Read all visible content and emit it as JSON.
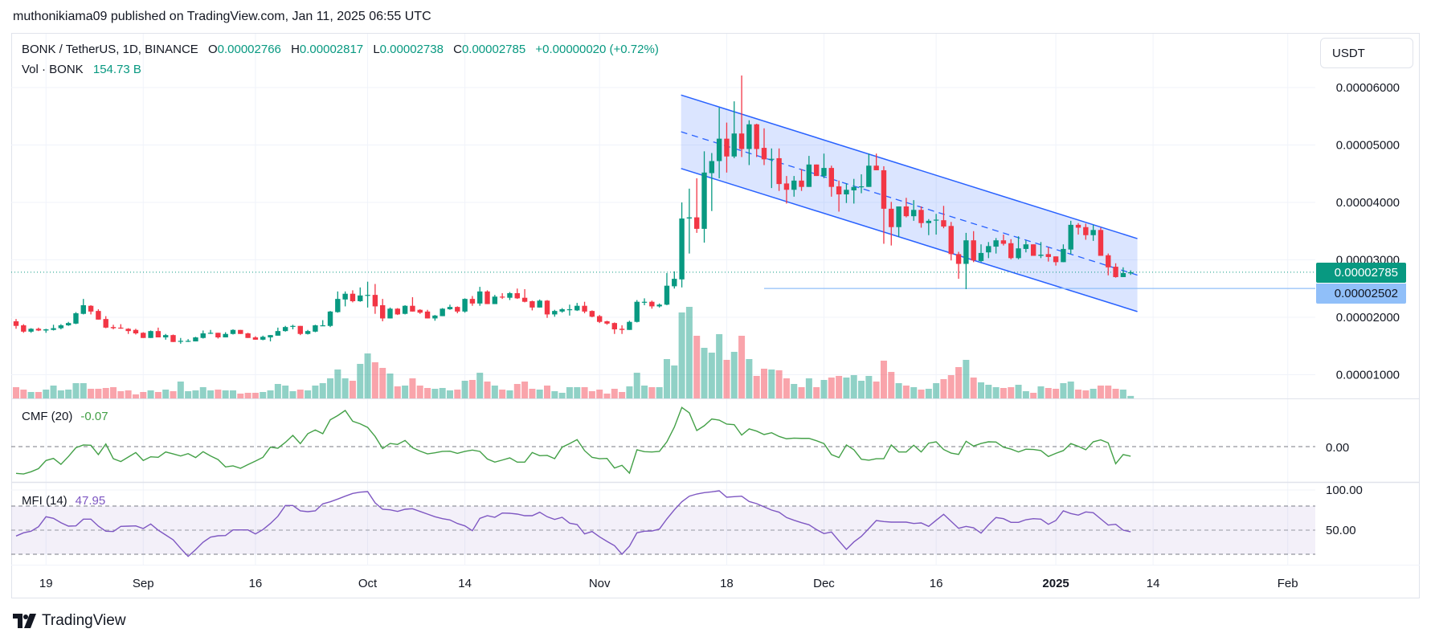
{
  "header": {
    "publisher_line": "muthonikiama09 published on TradingView.com, Jan 11, 2025 06:55 UTC"
  },
  "legend": {
    "symbol": "BONK / TetherUS, 1D, BINANCE",
    "o_label": "O",
    "o": "0.00002766",
    "h_label": "H",
    "h": "0.00002817",
    "l_label": "L",
    "l": "0.00002738",
    "c_label": "C",
    "c": "0.00002785",
    "change": "+0.00000020 (+0.72%)",
    "vol_label": "Vol · BONK",
    "vol": "154.73 B"
  },
  "currency_button": "USDT",
  "price_axis": {
    "ticks": [
      {
        "label": "0.00006000",
        "value": 6
      },
      {
        "label": "0.00005000",
        "value": 5
      },
      {
        "label": "0.00004000",
        "value": 4
      },
      {
        "label": "0.00003000",
        "value": 3
      },
      {
        "label": "0.00002000",
        "value": 2
      },
      {
        "label": "0.00001000",
        "value": 1
      }
    ],
    "last_price_badge": "0.00002785",
    "line_badge": "0.00002502"
  },
  "cmf": {
    "label": "CMF (20)",
    "value": "-0.07",
    "axis_label": "0.00"
  },
  "mfi": {
    "label": "MFI (14)",
    "value": "47.95",
    "axis_labels": [
      "100.00",
      "50.00"
    ]
  },
  "time_axis": {
    "ticks": [
      {
        "label": "19",
        "day": 4
      },
      {
        "label": "Sep",
        "day": 17
      },
      {
        "label": "16",
        "day": 32
      },
      {
        "label": "Oct",
        "day": 47
      },
      {
        "label": "14",
        "day": 60
      },
      {
        "label": "Nov",
        "day": 78
      },
      {
        "label": "18",
        "day": 95
      },
      {
        "label": "Dec",
        "day": 108
      },
      {
        "label": "16",
        "day": 123
      },
      {
        "label": "2025",
        "day": 139
      },
      {
        "label": "14",
        "day": 152
      },
      {
        "label": "Feb",
        "day": 170
      }
    ]
  },
  "footer": {
    "logo_text": "TradingView"
  },
  "colors": {
    "up": "#089981",
    "down": "#f23645",
    "vol_up": "rgba(8,153,129,0.45)",
    "vol_down": "rgba(242,54,69,0.45)",
    "cmf": "#43a047",
    "mfi": "#7e57c2",
    "channel": "#2962ff",
    "hline": "#90bff9"
  },
  "chart_data": {
    "type": "candlestick",
    "title": "BONK / TetherUS, 1D, BINANCE",
    "price_unit": "1e-5 USDT",
    "volume_unit": "B",
    "start_date": "2024-08-15",
    "ylim": [
      0.6,
      6.5
    ],
    "candles_ohlc": [
      [
        1.93,
        1.97,
        1.8,
        1.85
      ],
      [
        1.86,
        1.88,
        1.73,
        1.75
      ],
      [
        1.75,
        1.81,
        1.73,
        1.8
      ],
      [
        1.8,
        1.82,
        1.76,
        1.77
      ],
      [
        1.77,
        1.8,
        1.73,
        1.79
      ],
      [
        1.78,
        1.87,
        1.77,
        1.81
      ],
      [
        1.81,
        1.88,
        1.79,
        1.86
      ],
      [
        1.86,
        1.92,
        1.85,
        1.9
      ],
      [
        1.89,
        2.09,
        1.88,
        2.07
      ],
      [
        2.06,
        2.32,
        2.05,
        2.21
      ],
      [
        2.2,
        2.21,
        2.05,
        2.1
      ],
      [
        2.11,
        2.14,
        1.96,
        1.96
      ],
      [
        1.97,
        2.02,
        1.81,
        1.82
      ],
      [
        1.83,
        1.87,
        1.79,
        1.81
      ],
      [
        1.82,
        1.88,
        1.8,
        1.81
      ],
      [
        1.8,
        1.81,
        1.71,
        1.76
      ],
      [
        1.78,
        1.8,
        1.7,
        1.72
      ],
      [
        1.73,
        1.74,
        1.64,
        1.64
      ],
      [
        1.64,
        1.77,
        1.64,
        1.76
      ],
      [
        1.76,
        1.82,
        1.65,
        1.65
      ],
      [
        1.65,
        1.71,
        1.61,
        1.69
      ],
      [
        1.69,
        1.7,
        1.57,
        1.57
      ],
      [
        1.59,
        1.64,
        1.54,
        1.59
      ],
      [
        1.58,
        1.62,
        1.57,
        1.59
      ],
      [
        1.58,
        1.66,
        1.58,
        1.65
      ],
      [
        1.64,
        1.77,
        1.63,
        1.72
      ],
      [
        1.72,
        1.78,
        1.71,
        1.73
      ],
      [
        1.73,
        1.73,
        1.63,
        1.65
      ],
      [
        1.65,
        1.74,
        1.65,
        1.71
      ],
      [
        1.71,
        1.79,
        1.7,
        1.78
      ],
      [
        1.78,
        1.78,
        1.71,
        1.71
      ],
      [
        1.72,
        1.73,
        1.64,
        1.64
      ],
      [
        1.65,
        1.67,
        1.61,
        1.61
      ],
      [
        1.61,
        1.68,
        1.6,
        1.66
      ],
      [
        1.65,
        1.69,
        1.58,
        1.69
      ],
      [
        1.68,
        1.82,
        1.68,
        1.76
      ],
      [
        1.76,
        1.85,
        1.75,
        1.83
      ],
      [
        1.84,
        1.87,
        1.79,
        1.85
      ],
      [
        1.85,
        1.85,
        1.69,
        1.71
      ],
      [
        1.71,
        1.78,
        1.7,
        1.76
      ],
      [
        1.75,
        1.87,
        1.74,
        1.86
      ],
      [
        1.86,
        1.95,
        1.85,
        1.86
      ],
      [
        1.85,
        2.11,
        1.83,
        2.1
      ],
      [
        2.09,
        2.45,
        2.08,
        2.32
      ],
      [
        2.31,
        2.45,
        2.19,
        2.41
      ],
      [
        2.41,
        2.47,
        2.26,
        2.28
      ],
      [
        2.28,
        2.52,
        2.27,
        2.38
      ],
      [
        2.39,
        2.62,
        2.17,
        2.39
      ],
      [
        2.39,
        2.58,
        2.06,
        2.19
      ],
      [
        2.21,
        2.32,
        1.93,
        1.98
      ],
      [
        1.98,
        2.17,
        1.98,
        2.15
      ],
      [
        2.15,
        2.16,
        2.04,
        2.05
      ],
      [
        2.06,
        2.21,
        2.05,
        2.2
      ],
      [
        2.2,
        2.35,
        2.1,
        2.1
      ],
      [
        2.13,
        2.14,
        2.06,
        2.08
      ],
      [
        2.1,
        2.13,
        1.98,
        1.98
      ],
      [
        1.98,
        2.04,
        1.94,
        2.03
      ],
      [
        2.02,
        2.16,
        2.02,
        2.15
      ],
      [
        2.14,
        2.22,
        2.13,
        2.18
      ],
      [
        2.18,
        2.19,
        2.07,
        2.1
      ],
      [
        2.1,
        2.33,
        2.08,
        2.32
      ],
      [
        2.32,
        2.37,
        2.2,
        2.24
      ],
      [
        2.24,
        2.53,
        2.2,
        2.45
      ],
      [
        2.45,
        2.47,
        2.23,
        2.23
      ],
      [
        2.23,
        2.39,
        2.23,
        2.36
      ],
      [
        2.36,
        2.42,
        2.32,
        2.35
      ],
      [
        2.34,
        2.44,
        2.3,
        2.42
      ],
      [
        2.42,
        2.5,
        2.32,
        2.33
      ],
      [
        2.34,
        2.49,
        2.26,
        2.27
      ],
      [
        2.28,
        2.29,
        2.12,
        2.17
      ],
      [
        2.17,
        2.31,
        2.17,
        2.29
      ],
      [
        2.29,
        2.3,
        1.99,
        2.05
      ],
      [
        2.05,
        2.13,
        2.01,
        2.11
      ],
      [
        2.1,
        2.16,
        2.08,
        2.14
      ],
      [
        2.14,
        2.22,
        2.03,
        2.14
      ],
      [
        2.12,
        2.25,
        2.11,
        2.2
      ],
      [
        2.2,
        2.27,
        2.07,
        2.1
      ],
      [
        2.11,
        2.12,
        2.0,
        2.01
      ],
      [
        2.02,
        2.04,
        1.9,
        1.92
      ],
      [
        1.93,
        1.94,
        1.87,
        1.89
      ],
      [
        1.9,
        1.91,
        1.71,
        1.79
      ],
      [
        1.8,
        1.86,
        1.71,
        1.78
      ],
      [
        1.78,
        1.94,
        1.78,
        1.92
      ],
      [
        1.92,
        2.3,
        1.91,
        2.27
      ],
      [
        2.27,
        2.33,
        2.21,
        2.27
      ],
      [
        2.27,
        2.29,
        2.15,
        2.19
      ],
      [
        2.19,
        2.24,
        2.17,
        2.22
      ],
      [
        2.22,
        2.77,
        2.21,
        2.55
      ],
      [
        2.54,
        2.8,
        2.5,
        2.67
      ],
      [
        2.66,
        4.0,
        2.52,
        3.72
      ],
      [
        3.72,
        4.24,
        3.11,
        3.74
      ],
      [
        3.74,
        4.42,
        3.47,
        3.54
      ],
      [
        3.54,
        4.89,
        3.3,
        4.52
      ],
      [
        4.51,
        4.86,
        3.85,
        4.72
      ],
      [
        4.72,
        5.65,
        4.42,
        5.11
      ],
      [
        5.11,
        5.39,
        4.52,
        4.8
      ],
      [
        4.8,
        5.76,
        4.77,
        5.2
      ],
      [
        5.2,
        6.21,
        4.79,
        4.93
      ],
      [
        4.93,
        5.43,
        4.65,
        5.36
      ],
      [
        5.36,
        5.37,
        4.79,
        4.93
      ],
      [
        4.95,
        5.29,
        4.65,
        4.75
      ],
      [
        4.76,
        4.94,
        4.25,
        4.76
      ],
      [
        4.77,
        4.94,
        4.2,
        4.32
      ],
      [
        4.33,
        4.46,
        3.98,
        4.22
      ],
      [
        4.22,
        4.46,
        4.1,
        4.38
      ],
      [
        4.38,
        4.58,
        4.2,
        4.27
      ],
      [
        4.27,
        4.81,
        4.27,
        4.66
      ],
      [
        4.66,
        4.66,
        4.46,
        4.46
      ],
      [
        4.46,
        4.85,
        4.42,
        4.6
      ],
      [
        4.6,
        4.64,
        4.1,
        4.27
      ],
      [
        4.28,
        4.38,
        3.84,
        4.14
      ],
      [
        4.14,
        4.33,
        3.99,
        4.22
      ],
      [
        4.21,
        4.41,
        3.98,
        4.27
      ],
      [
        4.27,
        4.49,
        4.16,
        4.28
      ],
      [
        4.27,
        4.85,
        4.27,
        4.64
      ],
      [
        4.64,
        4.85,
        4.56,
        4.56
      ],
      [
        4.56,
        4.63,
        3.28,
        3.89
      ],
      [
        3.89,
        4.01,
        3.25,
        3.57
      ],
      [
        3.57,
        3.93,
        3.4,
        3.93
      ],
      [
        3.93,
        4.08,
        3.74,
        3.76
      ],
      [
        3.76,
        4.04,
        3.68,
        3.87
      ],
      [
        3.87,
        3.93,
        3.56,
        3.64
      ],
      [
        3.64,
        3.71,
        3.43,
        3.68
      ],
      [
        3.69,
        3.8,
        3.44,
        3.7
      ],
      [
        3.69,
        3.94,
        3.55,
        3.58
      ],
      [
        3.59,
        3.66,
        2.99,
        3.1
      ],
      [
        3.1,
        3.14,
        2.67,
        2.93
      ],
      [
        2.93,
        3.47,
        2.49,
        3.34
      ],
      [
        3.34,
        3.5,
        2.96,
        2.99
      ],
      [
        2.98,
        3.27,
        2.96,
        3.12
      ],
      [
        3.13,
        3.31,
        3.03,
        3.24
      ],
      [
        3.23,
        3.38,
        3.11,
        3.34
      ],
      [
        3.34,
        3.44,
        3.25,
        3.28
      ],
      [
        3.29,
        3.36,
        3.01,
        3.03
      ],
      [
        3.03,
        3.41,
        3.01,
        3.2
      ],
      [
        3.19,
        3.34,
        3.13,
        3.27
      ],
      [
        3.27,
        3.27,
        3.07,
        3.07
      ],
      [
        3.07,
        3.31,
        3.03,
        3.09
      ],
      [
        3.1,
        3.22,
        2.97,
        3.05
      ],
      [
        3.06,
        3.06,
        2.9,
        2.96
      ],
      [
        2.96,
        3.27,
        2.96,
        3.19
      ],
      [
        3.18,
        3.68,
        3.1,
        3.61
      ],
      [
        3.61,
        3.64,
        3.44,
        3.56
      ],
      [
        3.57,
        3.63,
        3.35,
        3.43
      ],
      [
        3.43,
        3.61,
        3.33,
        3.52
      ],
      [
        3.52,
        3.56,
        3.07,
        3.07
      ],
      [
        3.08,
        3.11,
        2.73,
        2.87
      ],
      [
        2.88,
        2.94,
        2.69,
        2.7
      ],
      [
        2.7,
        2.87,
        2.7,
        2.77
      ],
      [
        2.766,
        2.817,
        2.738,
        2.785
      ]
    ],
    "volume": [
      700,
      550,
      400,
      400,
      550,
      800,
      500,
      550,
      950,
      950,
      600,
      600,
      650,
      700,
      450,
      500,
      250,
      400,
      500,
      400,
      550,
      450,
      1050,
      450,
      500,
      700,
      500,
      550,
      500,
      500,
      300,
      350,
      350,
      400,
      500,
      900,
      800,
      450,
      550,
      500,
      800,
      950,
      1250,
      1800,
      1250,
      1100,
      2150,
      2800,
      2250,
      1900,
      1550,
      750,
      800,
      1250,
      800,
      650,
      600,
      650,
      500,
      550,
      1100,
      1150,
      1600,
      1050,
      800,
      550,
      500,
      900,
      1050,
      600,
      550,
      800,
      450,
      350,
      700,
      700,
      700,
      450,
      550,
      300,
      600,
      400,
      750,
      1600,
      800,
      700,
      700,
      2450,
      2050,
      5350,
      5700,
      3900,
      3150,
      2850,
      4000,
      2400,
      2900,
      3900,
      2450,
      1400,
      1850,
      1800,
      1750,
      1250,
      900,
      700,
      1250,
      700,
      1150,
      1300,
      1400,
      1300,
      1450,
      1100,
      1400,
      1050,
      2350,
      1650,
      950,
      800,
      700,
      550,
      600,
      950,
      1200,
      1450,
      1950,
      2400,
      1300,
      1000,
      850,
      700,
      650,
      700,
      850,
      450,
      350,
      750,
      650,
      600,
      950,
      1050,
      550,
      500,
      600,
      800,
      800,
      600,
      550,
      154.73
    ],
    "cmf_20": [
      -0.195,
      -0.199,
      -0.183,
      -0.16,
      -0.101,
      -0.086,
      -0.129,
      -0.072,
      -0.008,
      0.012,
      0.01,
      -0.058,
      0.019,
      -0.088,
      -0.109,
      -0.076,
      -0.043,
      -0.101,
      -0.074,
      -0.078,
      -0.039,
      -0.053,
      -0.068,
      -0.051,
      -0.08,
      -0.037,
      -0.068,
      -0.094,
      -0.148,
      -0.14,
      -0.158,
      -0.131,
      -0.105,
      -0.078,
      -0.004,
      -0.012,
      0.031,
      0.082,
      0.022,
      0.094,
      0.121,
      0.094,
      0.195,
      0.226,
      0.263,
      0.185,
      0.166,
      0.14,
      0.074,
      -0.014,
      0.023,
      0.016,
      0.045,
      -0.008,
      -0.033,
      -0.053,
      -0.045,
      -0.035,
      -0.033,
      -0.049,
      -0.035,
      -0.025,
      -0.035,
      -0.09,
      -0.113,
      -0.098,
      -0.082,
      -0.113,
      -0.113,
      -0.043,
      -0.066,
      -0.064,
      -0.088,
      -0.004,
      0.022,
      0.051,
      -0.029,
      -0.078,
      -0.088,
      -0.086,
      -0.156,
      -0.136,
      -0.193,
      -0.023,
      -0.037,
      -0.039,
      -0.035,
      0.035,
      0.142,
      0.285,
      0.246,
      0.117,
      0.152,
      0.201,
      0.193,
      0.164,
      0.16,
      0.084,
      0.129,
      0.113,
      0.088,
      0.101,
      0.074,
      0.057,
      0.062,
      0.06,
      0.06,
      0.043,
      0.022,
      -0.058,
      -0.08,
      0.012,
      -0.023,
      -0.092,
      -0.099,
      -0.088,
      -0.088,
      0.012,
      -0.039,
      -0.039,
      0.01,
      -0.039,
      0.025,
      0.035,
      -0.021,
      -0.047,
      -0.057,
      0.039,
      0.004,
      0.023,
      0.035,
      0.033,
      -0.004,
      -0.018,
      -0.039,
      -0.019,
      -0.021,
      -0.029,
      -0.072,
      -0.049,
      -0.029,
      0.022,
      0.002,
      -0.023,
      0.035,
      0.049,
      0.027,
      -0.125,
      -0.058,
      -0.07
    ],
    "mfi_14": [
      42.7,
      46.7,
      48.7,
      54.3,
      66.7,
      64.7,
      59.3,
      55,
      55.3,
      63.7,
      63.7,
      55,
      48.7,
      48.3,
      54.7,
      55,
      55.3,
      52,
      57.7,
      50,
      44,
      38,
      27.3,
      17.3,
      25.7,
      35,
      41.3,
      43,
      43.3,
      50.3,
      50.3,
      50.3,
      45.3,
      50.7,
      58.3,
      67.3,
      80.7,
      80.7,
      74,
      73,
      74,
      82.7,
      85.3,
      88.7,
      92.3,
      95.7,
      97.3,
      98,
      84,
      76,
      75.3,
      73.3,
      76,
      76.7,
      73.3,
      70,
      66.7,
      64.3,
      62.7,
      58.3,
      55.3,
      49.3,
      64.7,
      68,
      66,
      71.3,
      71,
      70,
      68,
      68,
      72.3,
      66.7,
      63.3,
      66,
      58.7,
      57,
      45.3,
      48.3,
      41.7,
      36,
      30.7,
      20,
      30,
      46.7,
      48.7,
      49,
      51.3,
      64,
      75.3,
      85.3,
      92.3,
      95,
      96.7,
      97.7,
      99,
      91,
      91.7,
      92.3,
      85.7,
      83,
      79,
      75,
      72.3,
      65.7,
      62.3,
      59.3,
      56.7,
      50.7,
      45.7,
      47.7,
      36.7,
      26,
      35.3,
      42.3,
      52,
      62,
      60.7,
      60,
      60,
      60,
      58.3,
      59,
      54.7,
      62.3,
      69.7,
      61,
      52.3,
      54.7,
      53,
      46.3,
      56.7,
      65.7,
      64.3,
      59.7,
      59.7,
      63,
      64.3,
      63.7,
      57.3,
      62,
      74,
      70.7,
      68.7,
      72.7,
      71.7,
      64,
      56.3,
      57.3,
      50,
      47.95
    ],
    "mfi_bands": [
      20,
      50,
      80
    ],
    "channel": {
      "start_day": 88.9,
      "end_day": 149.9,
      "upper": [
        5.87,
        3.37
      ],
      "lower": [
        4.59,
        2.1
      ]
    },
    "horizontal_line": {
      "price": 2.502,
      "start_day": 100
    },
    "last_close": 2.785
  }
}
